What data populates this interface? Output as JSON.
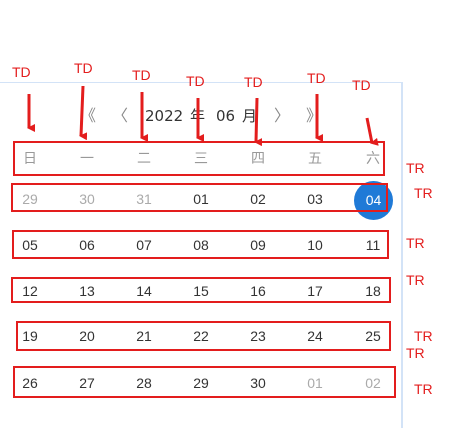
{
  "header": {
    "prev_year": "《",
    "prev_month": "〈",
    "year": "2022",
    "year_suffix": "年",
    "month": "06",
    "month_suffix": "月",
    "next_month": "〉",
    "next_year": "》"
  },
  "weekdays": [
    "日",
    "一",
    "二",
    "三",
    "四",
    "五",
    "六"
  ],
  "weeks": [
    [
      "29",
      "30",
      "31",
      "01",
      "02",
      "03",
      "04"
    ],
    [
      "05",
      "06",
      "07",
      "08",
      "09",
      "10",
      "11"
    ],
    [
      "12",
      "13",
      "14",
      "15",
      "16",
      "17",
      "18"
    ],
    [
      "19",
      "20",
      "21",
      "22",
      "23",
      "24",
      "25"
    ],
    [
      "26",
      "27",
      "28",
      "29",
      "30",
      "01",
      "02"
    ]
  ],
  "selected_date": "04",
  "colors": {
    "accent": "#1f7ad7",
    "annotation": "#e31d1d"
  },
  "annotations": {
    "td": [
      "TD",
      "TD",
      "TD",
      "TD",
      "TD",
      "TD",
      "TD"
    ],
    "tr": [
      "TR",
      "TR",
      "TR",
      "TR",
      "TR",
      "TR",
      "TR"
    ]
  }
}
